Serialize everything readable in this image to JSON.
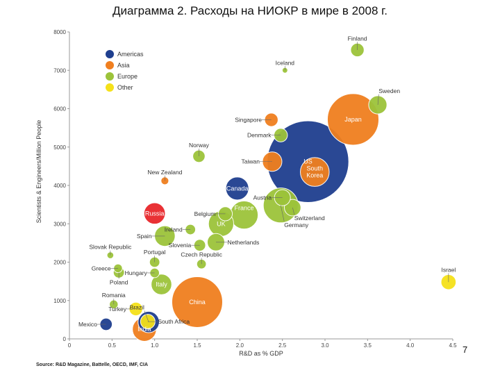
{
  "slide": {
    "title": "Диаграмма 2. Расходы на НИОКР в мире в 2008 г.",
    "page_number": "7",
    "source": "Source: R&D Magazine, Battelle, OECD, IMF, CIA"
  },
  "colors": {
    "Americas": "#1f3f8f",
    "Asia": "#f07f1f",
    "Europe": "#9cc33a",
    "Other": "#f5e11a",
    "Russia": "#e8272b"
  },
  "chart_data": {
    "type": "scatter",
    "xlabel": "R&D as % GDP",
    "ylabel": "Scientists & Engineers/Million People",
    "xlim": [
      0,
      4.5
    ],
    "ylim": [
      0,
      8000
    ],
    "xticks": [
      "0",
      "0.5",
      "1.0",
      "1.5",
      "2.0",
      "2.5",
      "3.0",
      "3.5",
      "4.0",
      "4.5"
    ],
    "yticks": [
      "0",
      "1000",
      "2000",
      "3000",
      "4000",
      "5000",
      "6000",
      "7000",
      "8000"
    ],
    "legend": {
      "position": "top-left",
      "entries": [
        {
          "label": "Americas",
          "region": "Americas"
        },
        {
          "label": "Asia",
          "region": "Asia"
        },
        {
          "label": "Europe",
          "region": "Europe"
        },
        {
          "label": "Other",
          "region": "Other"
        }
      ]
    },
    "points": [
      {
        "label": "US",
        "x": 2.8,
        "y": 4620,
        "size": 440,
        "region": "Americas",
        "label_pos": "inside"
      },
      {
        "label": "Japan",
        "x": 3.33,
        "y": 5720,
        "size": 175,
        "region": "Asia",
        "label_pos": "inside"
      },
      {
        "label": "China",
        "x": 1.5,
        "y": 960,
        "size": 170,
        "region": "Asia",
        "label_pos": "inside"
      },
      {
        "label": "South Korea",
        "x": 2.88,
        "y": 4350,
        "size": 55,
        "region": "Asia",
        "label_pos": "inside"
      },
      {
        "label": "Germany",
        "x": 2.48,
        "y": 3480,
        "size": 80,
        "region": "Europe",
        "label_pos": "below-right"
      },
      {
        "label": "France",
        "x": 2.05,
        "y": 3230,
        "size": 52,
        "region": "Europe",
        "label_pos": "inside-top"
      },
      {
        "label": "UK",
        "x": 1.78,
        "y": 3000,
        "size": 42,
        "region": "Europe",
        "label_pos": "inside"
      },
      {
        "label": "Canada",
        "x": 1.97,
        "y": 3920,
        "size": 35,
        "region": "Americas",
        "label_pos": "inside"
      },
      {
        "label": "Russia",
        "x": 1.0,
        "y": 3270,
        "size": 30,
        "region": "Russia",
        "label_pos": "inside"
      },
      {
        "label": "India",
        "x": 0.88,
        "y": 250,
        "size": 38,
        "region": "Asia",
        "label_pos": "inside"
      },
      {
        "label": "Brazil",
        "x": 0.93,
        "y": 440,
        "size": 30,
        "region": "Americas",
        "label_pos": "above-left"
      },
      {
        "label": "Italy",
        "x": 1.08,
        "y": 1420,
        "size": 28,
        "region": "Europe",
        "label_pos": "inside"
      },
      {
        "label": "Taiwan",
        "x": 2.38,
        "y": 4620,
        "size": 25,
        "region": "Asia",
        "label_pos": "left"
      },
      {
        "label": "Sweden",
        "x": 3.62,
        "y": 6100,
        "size": 22,
        "region": "Europe",
        "label_pos": "above-right"
      },
      {
        "label": "Spain",
        "x": 1.12,
        "y": 2680,
        "size": 28,
        "region": "Europe",
        "label_pos": "left"
      },
      {
        "label": "Netherlands",
        "x": 1.72,
        "y": 2520,
        "size": 20,
        "region": "Europe",
        "label_pos": "right"
      },
      {
        "label": "Austria",
        "x": 2.5,
        "y": 3680,
        "size": 17,
        "region": "Europe",
        "label_pos": "left"
      },
      {
        "label": "Switzerland",
        "x": 2.62,
        "y": 3420,
        "size": 18,
        "region": "Europe",
        "label_pos": "below-right"
      },
      {
        "label": "Belgium",
        "x": 1.83,
        "y": 3260,
        "size": 13,
        "region": "Europe",
        "label_pos": "left"
      },
      {
        "label": "South Africa",
        "x": 0.92,
        "y": 450,
        "size": 14,
        "region": "Other",
        "label_pos": "right"
      },
      {
        "label": "Turkey",
        "x": 0.78,
        "y": 780,
        "size": 12,
        "region": "Other",
        "label_pos": "left"
      },
      {
        "label": "Singapore",
        "x": 2.37,
        "y": 5710,
        "size": 12,
        "region": "Asia",
        "label_pos": "left"
      },
      {
        "label": "Denmark",
        "x": 2.48,
        "y": 5310,
        "size": 12,
        "region": "Europe",
        "label_pos": "left"
      },
      {
        "label": "Finland",
        "x": 3.38,
        "y": 7530,
        "size": 12,
        "region": "Europe",
        "label_pos": "above"
      },
      {
        "label": "Norway",
        "x": 1.52,
        "y": 4760,
        "size": 10,
        "region": "Europe",
        "label_pos": "above"
      },
      {
        "label": "Slovenia",
        "x": 1.53,
        "y": 2440,
        "size": 9,
        "region": "Europe",
        "label_pos": "left"
      },
      {
        "label": "Israel",
        "x": 4.45,
        "y": 1480,
        "size": 15,
        "region": "Other",
        "label_pos": "above"
      },
      {
        "label": "Mexico",
        "x": 0.43,
        "y": 380,
        "size": 10,
        "region": "Americas",
        "label_pos": "left"
      },
      {
        "label": "Ireland",
        "x": 1.42,
        "y": 2850,
        "size": 7,
        "region": "Europe",
        "label_pos": "left"
      },
      {
        "label": "Czech Republic",
        "x": 1.55,
        "y": 1950,
        "size": 6,
        "region": "Europe",
        "label_pos": "above"
      },
      {
        "label": "Portugal",
        "x": 1.0,
        "y": 2000,
        "size": 7,
        "region": "Europe",
        "label_pos": "above"
      },
      {
        "label": "Hungary",
        "x": 1.0,
        "y": 1720,
        "size": 6,
        "region": "Europe",
        "label_pos": "left"
      },
      {
        "label": "Poland",
        "x": 0.58,
        "y": 1730,
        "size": 8,
        "region": "Europe",
        "label_pos": "below"
      },
      {
        "label": "Greece",
        "x": 0.57,
        "y": 1840,
        "size": 5,
        "region": "Europe",
        "label_pos": "left"
      },
      {
        "label": "Romania",
        "x": 0.52,
        "y": 900,
        "size": 5,
        "region": "Europe",
        "label_pos": "above"
      },
      {
        "label": "Slovak Republic",
        "x": 0.48,
        "y": 2180,
        "size": 3,
        "region": "Europe",
        "label_pos": "above"
      },
      {
        "label": "New Zealand",
        "x": 1.12,
        "y": 4120,
        "size": 4,
        "region": "Asia",
        "label_pos": "above"
      },
      {
        "label": "Iceland",
        "x": 2.53,
        "y": 7000,
        "size": 2,
        "region": "Europe",
        "label_pos": "above"
      }
    ]
  }
}
